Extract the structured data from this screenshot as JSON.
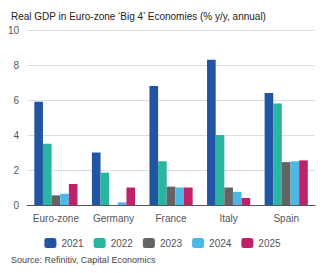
{
  "chart_data": {
    "type": "bar",
    "title": "Real GDP in Euro-zone ‘Big 4’ Economies (% y/y, annual)",
    "annotations": [
      "Source: Refinitiv, Capital Economics"
    ],
    "categories": [
      "Euro-zone",
      "Germany",
      "France",
      "Italy",
      "Spain"
    ],
    "series": [
      {
        "name": "2021",
        "color": "#2155a3",
        "values": [
          5.9,
          3.0,
          6.8,
          8.3,
          6.4
        ]
      },
      {
        "name": "2022",
        "color": "#2ab5a0",
        "values": [
          3.5,
          1.85,
          2.5,
          4.0,
          5.8
        ]
      },
      {
        "name": "2023",
        "color": "#636363",
        "values": [
          0.55,
          0.0,
          1.05,
          1.0,
          2.45
        ]
      },
      {
        "name": "2024",
        "color": "#4db8e8",
        "values": [
          0.65,
          0.15,
          1.0,
          0.75,
          2.5
        ]
      },
      {
        "name": "2025",
        "color": "#c0226a",
        "values": [
          1.2,
          1.0,
          1.0,
          0.4,
          2.55
        ]
      }
    ],
    "ylim": [
      0,
      10
    ],
    "yticks": [
      0,
      2,
      4,
      6,
      8,
      10
    ],
    "grid": true,
    "legend": "bottom"
  }
}
